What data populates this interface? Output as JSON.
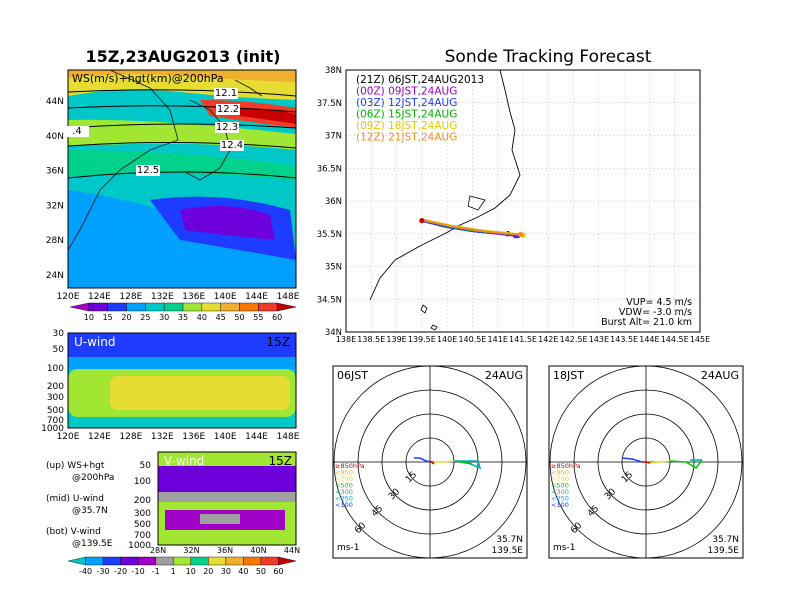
{
  "left_title": "15Z,23AUG2013 (init)",
  "right_title": "Sonde Tracking Forecast",
  "top_map": {
    "label": "WS(m/s)+hgt(km)@200hPa",
    "lat_labels": [
      "44N",
      "40N",
      "36N",
      "32N",
      "28N",
      "24N"
    ],
    "lon_labels": [
      "120E",
      "124E",
      "128E",
      "132E",
      "136E",
      "140E",
      "144E",
      "148E"
    ],
    "contour_labels": [
      "12.1",
      "12.2",
      ".4",
      "12.3",
      "12.4",
      "12.5"
    ],
    "colorbar_labels": [
      "10",
      "15",
      "20",
      "25",
      "30",
      "35",
      "40",
      "45",
      "50",
      "55",
      "60"
    ],
    "colorbar_colors": [
      "#a000c8",
      "#6e00dc",
      "#1e3cff",
      "#00a0ff",
      "#00c8c8",
      "#00d28c",
      "#a0e632",
      "#e6dc32",
      "#f0af2d",
      "#fa7800",
      "#f03c28",
      "#c80000"
    ]
  },
  "u_wind": {
    "label": "U-wind",
    "time": "15Z",
    "y_labels": [
      "30",
      "50",
      "100",
      "200",
      "300",
      "500",
      "700",
      "1000"
    ],
    "x_labels": [
      "120E",
      "124E",
      "128E",
      "132E",
      "136E",
      "140E",
      "144E",
      "148E"
    ]
  },
  "v_wind": {
    "label": "V-wind",
    "time": "15Z",
    "y_labels": [
      "50",
      "100",
      "200",
      "300",
      "500",
      "700",
      "1000"
    ],
    "x_labels": [
      "28N",
      "32N",
      "36N",
      "40N",
      "44N"
    ]
  },
  "legend_notes": [
    {
      "a": "(up) WS+hgt",
      "b": "@200hPa"
    },
    {
      "a": "(mid) U-wind",
      "b": "@35.7N"
    },
    {
      "a": "(bot) V-wind",
      "b": "@139.5E"
    }
  ],
  "bottom_colorbar": {
    "labels": [
      "-40",
      "-30",
      "-20",
      "-10",
      "-1",
      "1",
      "10",
      "20",
      "30",
      "40",
      "50",
      "60"
    ],
    "colors": [
      "#00c8c8",
      "#00a0ff",
      "#1e3cff",
      "#6e00dc",
      "#a000c8",
      "#a0a0a0",
      "#a0e632",
      "#00d28c",
      "#e6dc32",
      "#f0af2d",
      "#fa7800",
      "#f03c28",
      "#c80000"
    ]
  },
  "track_chart": {
    "y_labels": [
      "38N",
      "37.5N",
      "37N",
      "36.5N",
      "36N",
      "35.5N",
      "35N",
      "34.5N",
      "34N"
    ],
    "x_labels": [
      "138E",
      "138.5E",
      "139E",
      "139.5E",
      "140E",
      "140.5E",
      "141E",
      "141.5E",
      "142E",
      "142.5E",
      "143E",
      "143.5E",
      "144E",
      "144.5E",
      "145E"
    ],
    "legend": [
      {
        "text": "(21Z) 06JST,24AUG2013",
        "color": "#000000"
      },
      {
        "text": "(00Z) 09JST,24AUG",
        "color": "#a000c8"
      },
      {
        "text": "(03Z) 12JST,24AUG",
        "color": "#1e3cff"
      },
      {
        "text": "(06Z) 15JST,24AUG",
        "color": "#00b400"
      },
      {
        "text": "(09Z) 18JST,24AUG",
        "color": "#e6c800"
      },
      {
        "text": "(12Z) 21JST,24AUG",
        "color": "#f08c28"
      }
    ],
    "stats": [
      "VUP= 4.5 m/s",
      "VDW= -3.0 m/s",
      "Burst Alt= 21.0 km"
    ]
  },
  "chart_data": {
    "type": "line",
    "title": "Sonde Tracking Forecast",
    "xlim": [
      138,
      145
    ],
    "ylim": [
      34,
      38
    ],
    "launch": {
      "lon": 139.5,
      "lat": 35.7
    },
    "series": [
      {
        "name": "(21Z) 06JST,24AUG2013",
        "color": "#000000",
        "x": [
          139.5,
          139.9,
          140.4,
          140.9,
          141.2
        ],
        "y": [
          35.7,
          35.62,
          35.56,
          35.52,
          35.5
        ]
      },
      {
        "name": "(00Z) 09JST,24AUG",
        "color": "#a000c8",
        "x": [
          139.5,
          139.95,
          140.5,
          141.0,
          141.35
        ],
        "y": [
          35.7,
          35.61,
          35.54,
          35.5,
          35.47
        ]
      },
      {
        "name": "(03Z) 12JST,24AUG",
        "color": "#1e3cff",
        "x": [
          139.5,
          140.0,
          140.6,
          141.1,
          141.4
        ],
        "y": [
          35.7,
          35.6,
          35.53,
          35.5,
          35.47
        ]
      },
      {
        "name": "(06Z) 15JST,24AUG",
        "color": "#00b400",
        "x": [
          139.5,
          140.0,
          140.6,
          141.2,
          141.5
        ],
        "y": [
          35.72,
          35.62,
          35.54,
          35.51,
          35.48
        ]
      },
      {
        "name": "(09Z) 18JST,24AUG",
        "color": "#e6c800",
        "x": [
          139.5,
          140.1,
          140.7,
          141.2,
          141.5
        ],
        "y": [
          35.72,
          35.62,
          35.55,
          35.51,
          35.48
        ]
      },
      {
        "name": "(12Z) 21JST,24AUG",
        "color": "#f08c28",
        "x": [
          139.5,
          140.1,
          140.7,
          141.2,
          141.45
        ],
        "y": [
          35.71,
          35.61,
          35.54,
          35.5,
          35.49
        ]
      }
    ]
  },
  "hodo_left": {
    "time": "06JST",
    "date": "24AUG",
    "loc1": "35.7N",
    "loc2": "139.5E",
    "unit": "ms-1"
  },
  "hodo_right": {
    "time": "18JST",
    "date": "24AUG",
    "loc1": "35.7N",
    "loc2": "139.5E",
    "unit": "ms-1"
  },
  "hodo_ring_labels": [
    "15",
    "30",
    "45",
    "60"
  ],
  "hodo_levels": [
    {
      "text": "≥850hPa",
      "color": "#c80000"
    },
    {
      "text": "<850",
      "color": "#f0af2d"
    },
    {
      "text": "<700",
      "color": "#e6dc32"
    },
    {
      "text": "<500",
      "color": "#00c800"
    },
    {
      "text": "<300",
      "color": "#00b4b4"
    },
    {
      "text": "<250",
      "color": "#00a0ff"
    },
    {
      "text": "<100",
      "color": "#1e3cff"
    }
  ]
}
